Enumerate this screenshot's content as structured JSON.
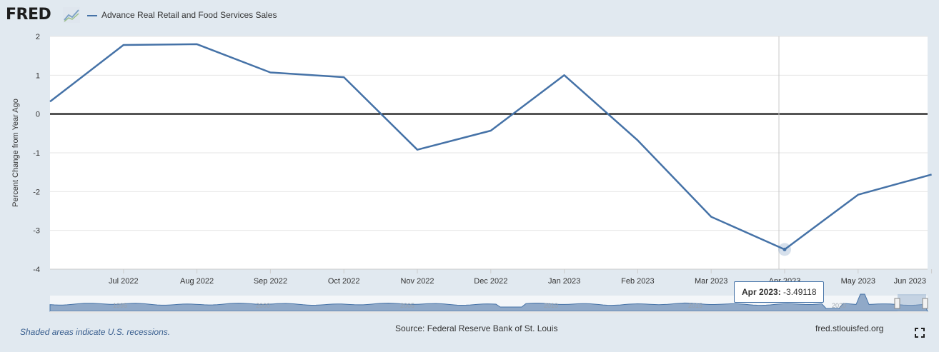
{
  "header": {
    "logo_text": "FRED",
    "logo_icon": "fred-graph-icon",
    "legend_label": "Advance Real Retail and Food Services Sales"
  },
  "colors": {
    "series": "#4572a7",
    "zero_line": "#000000",
    "background": "#e1e9f0",
    "plot_background": "#ffffff",
    "navigator_fill": "#6f8fb7"
  },
  "chart_data": {
    "type": "line",
    "title": "",
    "ylabel": "Percent Change from Year Ago",
    "xlabel": "",
    "ylim": [
      -4,
      2
    ],
    "yticks": [
      2,
      1,
      0,
      -1,
      -2,
      -3,
      -4
    ],
    "grid": true,
    "legend_placement": "top-left",
    "x_tick_labels": [
      "Jul 2022",
      "Aug 2022",
      "Sep 2022",
      "Oct 2022",
      "Nov 2022",
      "Dec 2022",
      "Jan 2023",
      "Feb 2023",
      "Mar 2023",
      "Apr 2023",
      "May 2023",
      "Jun 2023"
    ],
    "series": [
      {
        "name": "Advance Real Retail and Food Services Sales",
        "x": [
          "2022-06",
          "2022-07",
          "2022-08",
          "2022-09",
          "2022-10",
          "2022-11",
          "2022-12",
          "2023-01",
          "2023-02",
          "2023-03",
          "2023-04",
          "2023-05",
          "2023-06"
        ],
        "values": [
          0.32,
          1.78,
          1.8,
          1.07,
          0.95,
          -0.92,
          -0.43,
          1.0,
          -0.68,
          -2.65,
          -3.49118,
          -2.08,
          -1.56
        ]
      }
    ],
    "highlight": {
      "index": 10
    },
    "navigator_labels": [
      "1995",
      "2000",
      "2005",
      "2010",
      "2015",
      "2020"
    ]
  },
  "tooltip": {
    "date": "Apr 2023:",
    "value": "-3.49118"
  },
  "footer": {
    "note": "Shaded areas indicate U.S. recessions.",
    "source": "Source: Federal Reserve Bank of St. Louis",
    "site": "fred.stlouisfed.org",
    "fullscreen_icon": "fullscreen-icon"
  }
}
